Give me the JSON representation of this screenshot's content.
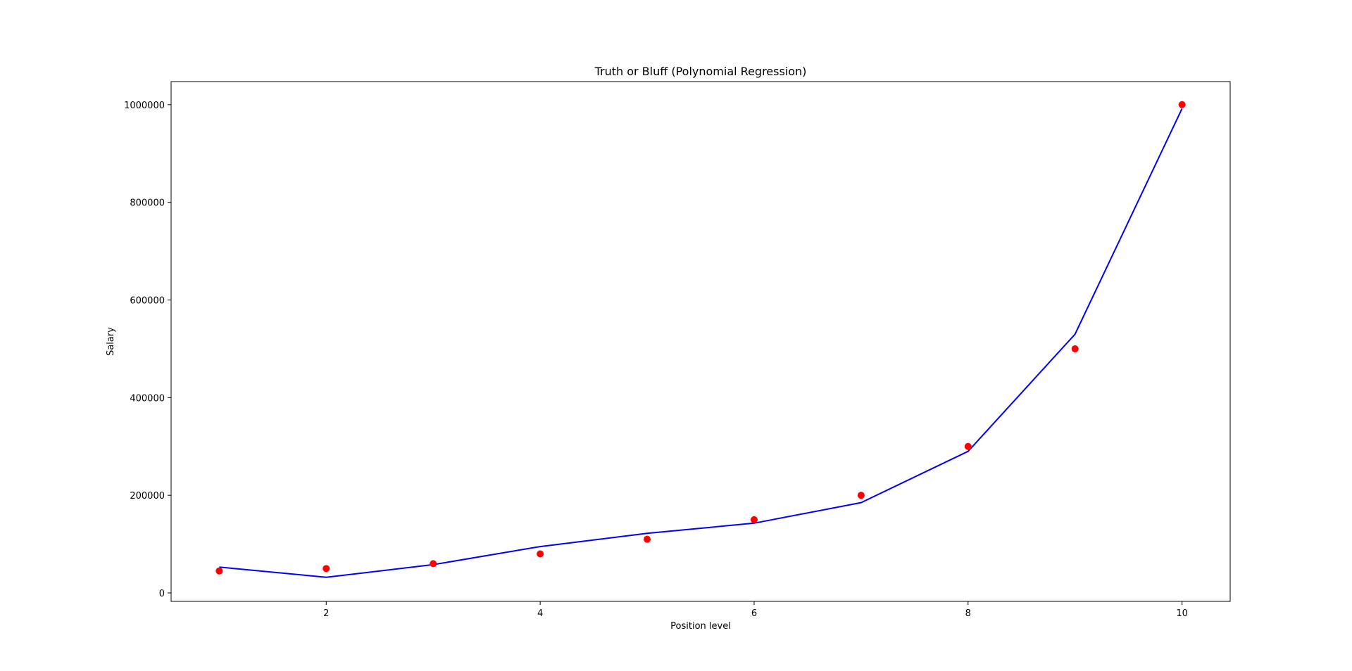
{
  "chart_data": {
    "type": "scatter",
    "title": "Truth or Bluff (Polynomial Regression)",
    "xlabel": "Position level",
    "ylabel": "Salary",
    "xlim": [
      0.55,
      10.45
    ],
    "ylim": [
      -17250,
      1047250
    ],
    "x_ticks": [
      2,
      4,
      6,
      8,
      10
    ],
    "x_tick_labels": [
      "2",
      "4",
      "6",
      "8",
      "10"
    ],
    "y_ticks": [
      0,
      200000,
      400000,
      600000,
      800000,
      1000000
    ],
    "y_tick_labels": [
      "0",
      "200000",
      "400000",
      "600000",
      "800000",
      "1000000"
    ],
    "grid": false,
    "series": [
      {
        "type": "scatter",
        "color": "#ff0000",
        "x": [
          1,
          2,
          3,
          4,
          5,
          6,
          7,
          8,
          9,
          10
        ],
        "y": [
          45000,
          50000,
          60000,
          80000,
          110000,
          150000,
          200000,
          300000,
          500000,
          1000000
        ]
      },
      {
        "type": "line",
        "color": "#0000ff",
        "x": [
          1,
          2,
          3,
          4,
          5,
          6,
          7,
          8,
          9,
          10
        ],
        "y": [
          53000,
          32000,
          58000,
          95000,
          122000,
          143000,
          185000,
          290000,
          530000,
          992000
        ]
      }
    ]
  }
}
